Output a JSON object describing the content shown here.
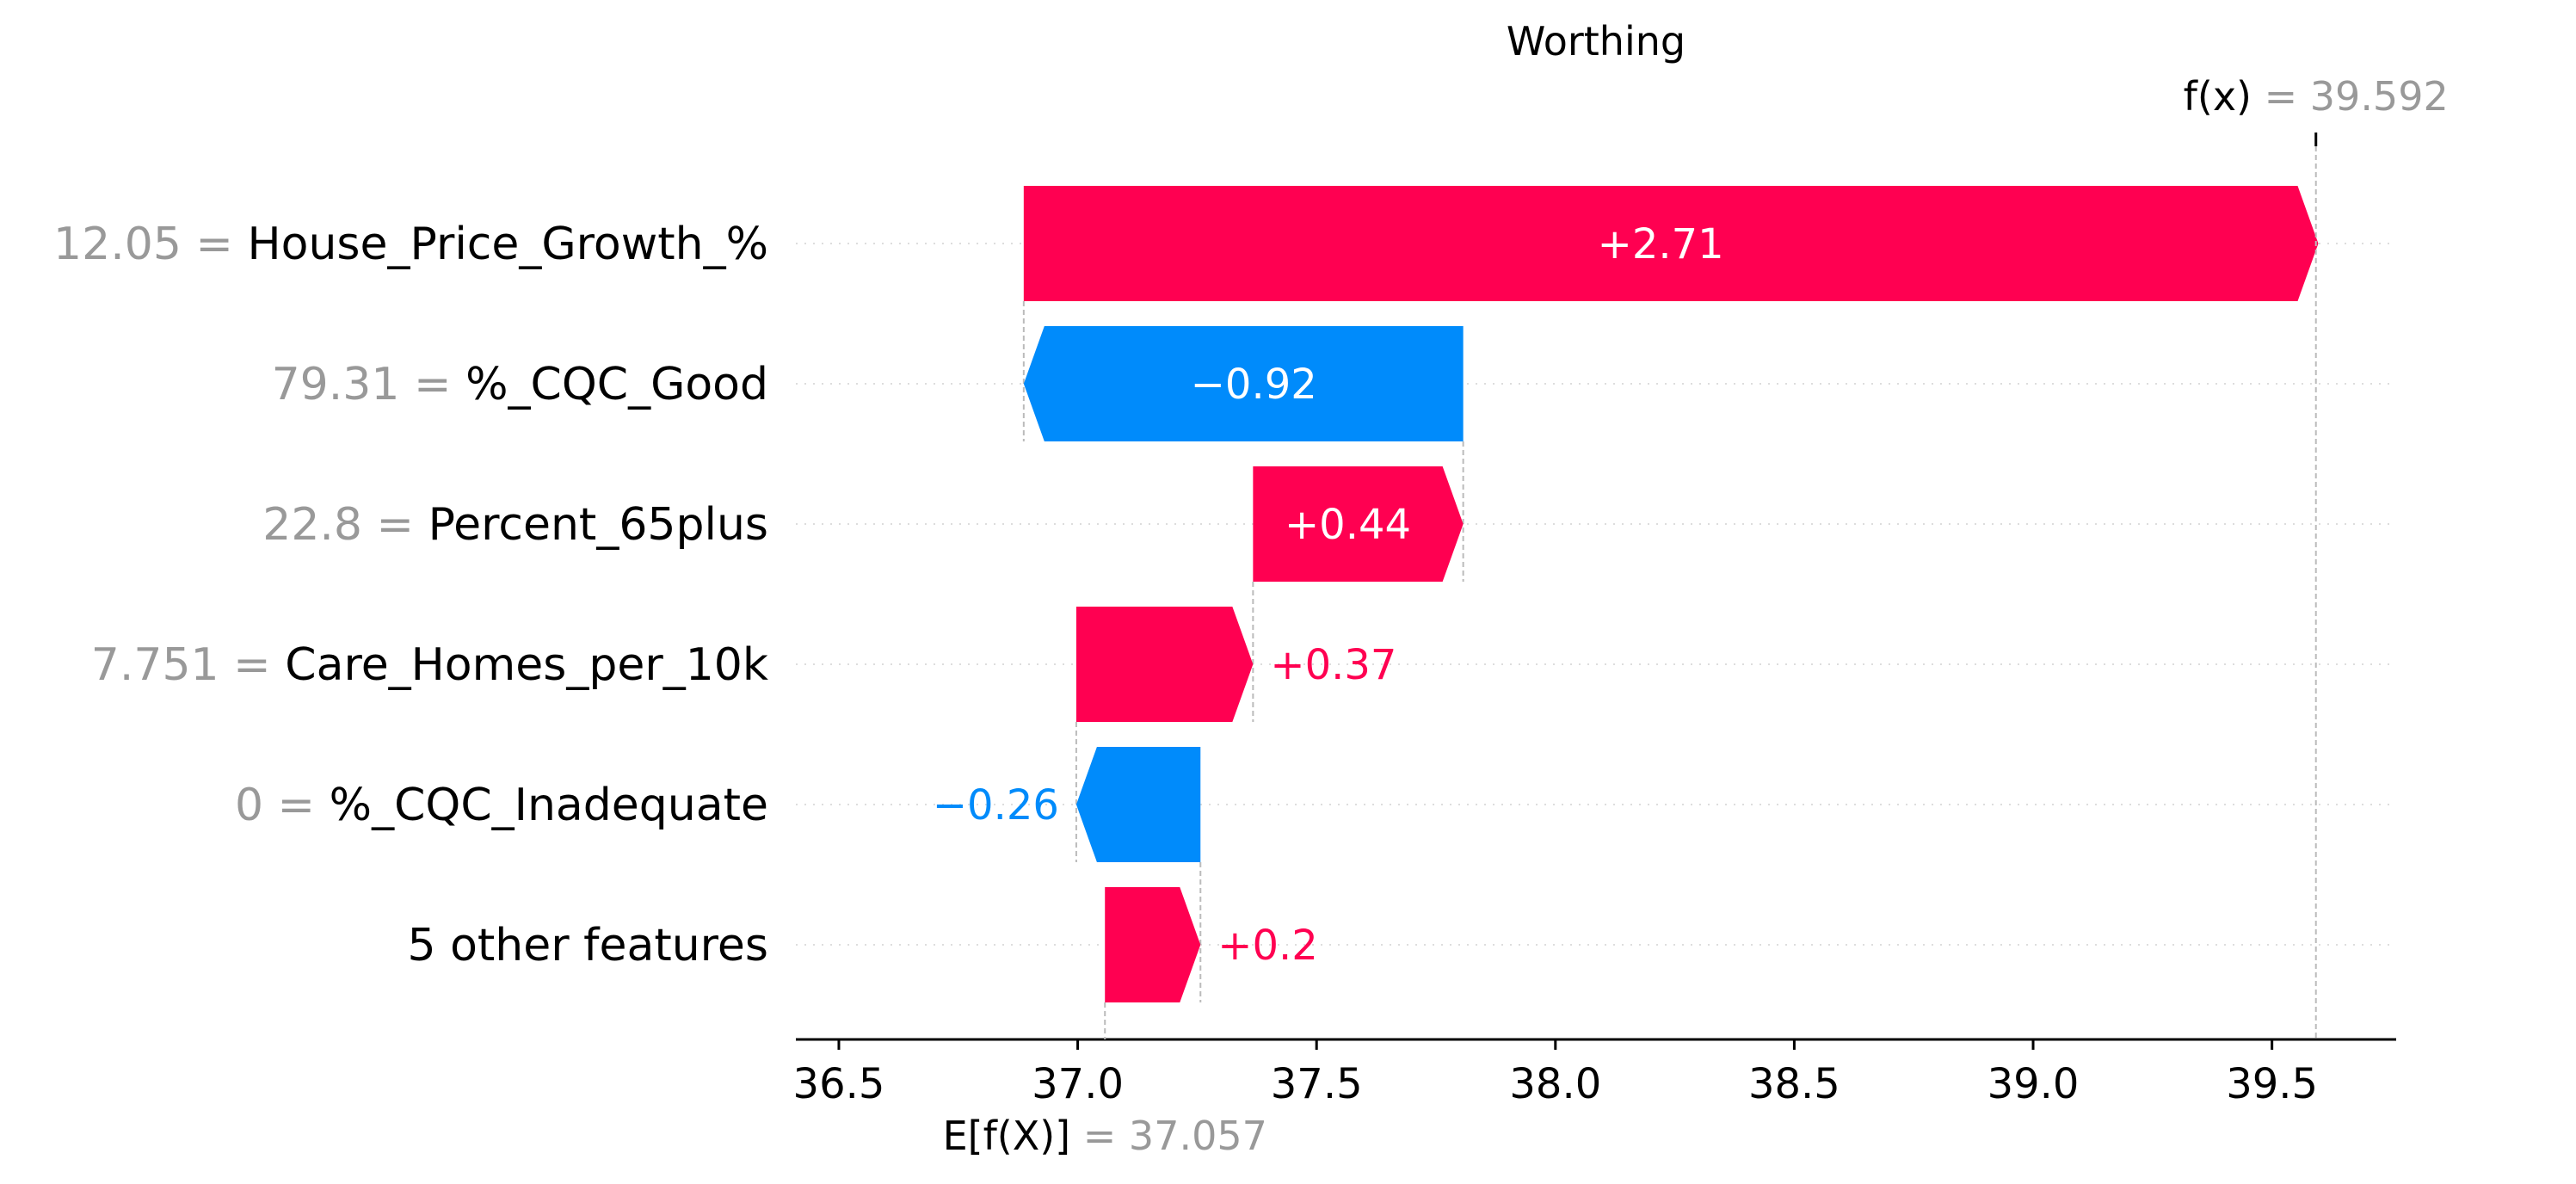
{
  "chart_data": {
    "type": "bar",
    "title": "Worthing",
    "features": [
      {
        "value": "12.05",
        "name": "House_Price_Growth_%",
        "contribution": 2.71,
        "label": "+2.71"
      },
      {
        "value": "79.31",
        "name": "%_CQC_Good",
        "contribution": -0.92,
        "label": "−0.92"
      },
      {
        "value": "22.8",
        "name": "Percent_65plus",
        "contribution": 0.44,
        "label": "+0.44"
      },
      {
        "value": "7.751",
        "name": "Care_Homes_per_10k",
        "contribution": 0.37,
        "label": "+0.37"
      },
      {
        "value": "0",
        "name": "%_CQC_Inadequate",
        "contribution": -0.26,
        "label": "−0.26"
      },
      {
        "value": "",
        "name": "5 other features",
        "contribution": 0.2,
        "label": "+0.2"
      }
    ],
    "base_value": 37.057,
    "base_value_label": "37.057",
    "base_label": "E[f(X)]",
    "fx_value": 39.592,
    "fx_value_label": "39.592",
    "fx_label": "f(x)",
    "xlim": [
      36.41,
      39.76
    ],
    "ticks": [
      36.5,
      37.0,
      37.5,
      38.0,
      38.5,
      39.0,
      39.5
    ],
    "tick_labels": [
      "36.5",
      "37.0",
      "37.5",
      "38.0",
      "38.5",
      "39.0",
      "39.5"
    ],
    "colors": {
      "positive": "#FF0051",
      "negative": "#008BFB",
      "gray_text": "#999999",
      "axis": "#000000",
      "guide": "#BBBBBB",
      "gridline": "#DDDDDD"
    }
  }
}
